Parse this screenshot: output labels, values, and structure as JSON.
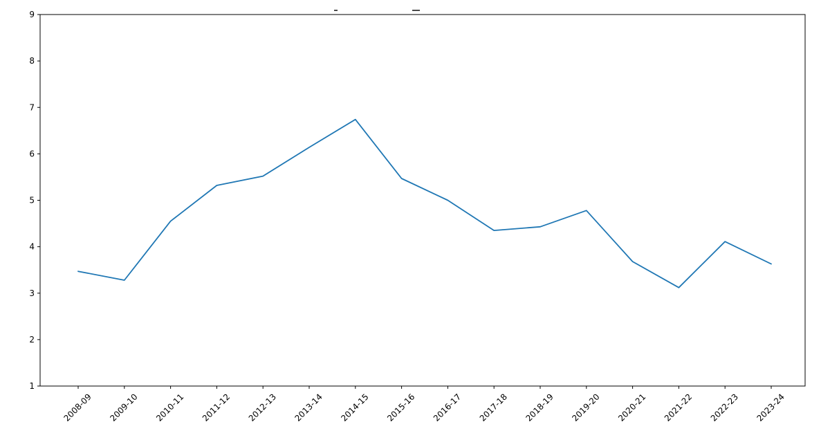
{
  "chart_data": {
    "type": "line",
    "title": "",
    "title_clipped": true,
    "categories": [
      "2008-09",
      "2009-10",
      "2010-11",
      "2011-12",
      "2012-13",
      "2013-14",
      "2014-15",
      "2015-16",
      "2016-17",
      "2017-18",
      "2018-19",
      "2019-20",
      "2020-21",
      "2021-22",
      "2022-23",
      "2023-24"
    ],
    "values": [
      3.47,
      3.28,
      4.55,
      5.32,
      5.52,
      6.14,
      6.74,
      5.47,
      5.0,
      4.35,
      4.43,
      4.78,
      3.68,
      3.12,
      4.11,
      3.63
    ],
    "xlabel": "",
    "ylabel": "",
    "ylim": [
      1,
      9
    ],
    "yticks": [
      1,
      2,
      3,
      4,
      5,
      6,
      7,
      8,
      9
    ],
    "x_tick_rotation": 45,
    "grid": false,
    "legend": null,
    "line_color": "#1f77b4",
    "frame_color": "#000000",
    "tick_label_color": "#000000"
  }
}
